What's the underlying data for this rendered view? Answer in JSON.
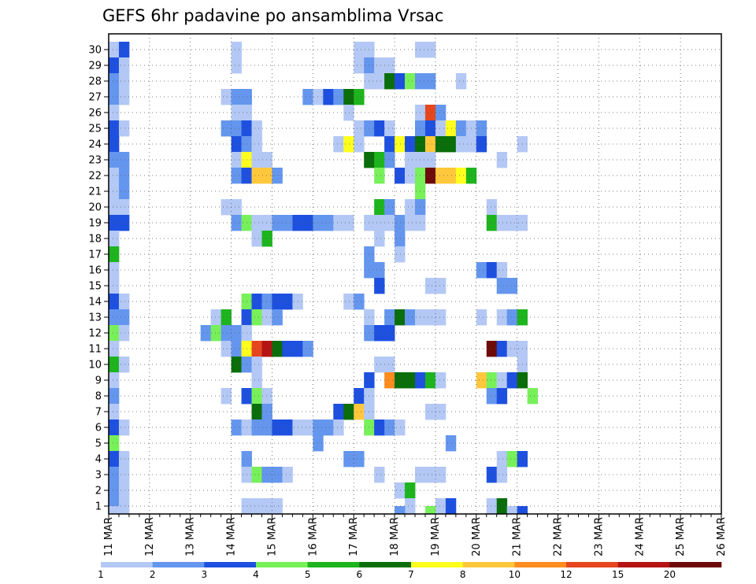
{
  "chart_data": {
    "type": "heatmap",
    "title": "GEFS 6hr padavine po ansamblima Vrsac",
    "x_labels": [
      "11 MAR",
      "12 MAR",
      "13 MAR",
      "14 MAR",
      "15 MAR",
      "16 MAR",
      "17 MAR",
      "18 MAR",
      "19 MAR",
      "20 MAR",
      "21 MAR",
      "22 MAR",
      "23 MAR",
      "24 MAR",
      "25 MAR",
      "26 MAR"
    ],
    "y_labels": [
      "1",
      "2",
      "3",
      "4",
      "5",
      "6",
      "7",
      "8",
      "9",
      "10",
      "11",
      "12",
      "13",
      "14",
      "15",
      "16",
      "17",
      "18",
      "19",
      "20",
      "21",
      "22",
      "23",
      "24",
      "25",
      "26",
      "27",
      "28",
      "29",
      "30"
    ],
    "steps_per_day": 4,
    "grid": true,
    "colorbar": {
      "labels": [
        "1",
        "2",
        "3",
        "4",
        "5",
        "6",
        "7",
        "8",
        "10",
        "12",
        "15",
        "20"
      ],
      "colors": [
        "#b4c8f5",
        "#6496ee",
        "#1e50e0",
        "#78f05a",
        "#1eb41e",
        "#0a6e0a",
        "#ffff1e",
        "#ffc83c",
        "#ff8c1e",
        "#e6461e",
        "#b41414",
        "#6e0a0a"
      ]
    },
    "cells": [
      [
        30,
        0,
        1
      ],
      [
        30,
        1,
        3
      ],
      [
        30,
        12,
        1
      ],
      [
        30,
        24,
        1
      ],
      [
        30,
        25,
        1
      ],
      [
        30,
        30,
        1
      ],
      [
        30,
        31,
        1
      ],
      [
        29,
        0,
        3
      ],
      [
        29,
        1,
        1
      ],
      [
        29,
        12,
        1
      ],
      [
        29,
        24,
        1
      ],
      [
        29,
        25,
        2
      ],
      [
        29,
        26,
        1
      ],
      [
        29,
        27,
        1
      ],
      [
        28,
        0,
        2
      ],
      [
        28,
        1,
        1
      ],
      [
        28,
        25,
        1
      ],
      [
        28,
        26,
        1
      ],
      [
        28,
        27,
        6
      ],
      [
        28,
        28,
        3
      ],
      [
        28,
        29,
        4
      ],
      [
        28,
        30,
        2
      ],
      [
        28,
        31,
        2
      ],
      [
        28,
        34,
        1
      ],
      [
        27,
        0,
        2
      ],
      [
        27,
        1,
        1
      ],
      [
        27,
        11,
        1
      ],
      [
        27,
        12,
        2
      ],
      [
        27,
        13,
        2
      ],
      [
        27,
        19,
        2
      ],
      [
        27,
        20,
        1
      ],
      [
        27,
        21,
        3
      ],
      [
        27,
        22,
        2
      ],
      [
        27,
        23,
        6
      ],
      [
        27,
        24,
        5
      ],
      [
        26,
        0,
        1
      ],
      [
        26,
        12,
        1
      ],
      [
        26,
        13,
        1
      ],
      [
        26,
        23,
        1
      ],
      [
        26,
        30,
        1
      ],
      [
        26,
        31,
        10
      ],
      [
        26,
        32,
        2
      ],
      [
        25,
        0,
        3
      ],
      [
        25,
        1,
        1
      ],
      [
        25,
        11,
        2
      ],
      [
        25,
        12,
        2
      ],
      [
        25,
        13,
        3
      ],
      [
        25,
        14,
        1
      ],
      [
        25,
        24,
        1
      ],
      [
        25,
        25,
        2
      ],
      [
        25,
        26,
        3
      ],
      [
        25,
        27,
        1
      ],
      [
        25,
        30,
        2
      ],
      [
        25,
        31,
        3
      ],
      [
        25,
        32,
        1
      ],
      [
        25,
        33,
        7
      ],
      [
        25,
        34,
        2
      ],
      [
        25,
        35,
        1
      ],
      [
        25,
        36,
        2
      ],
      [
        24,
        0,
        3
      ],
      [
        24,
        12,
        3
      ],
      [
        24,
        13,
        2
      ],
      [
        24,
        14,
        1
      ],
      [
        24,
        22,
        1
      ],
      [
        24,
        23,
        7
      ],
      [
        24,
        24,
        1
      ],
      [
        24,
        27,
        3
      ],
      [
        24,
        28,
        7
      ],
      [
        24,
        29,
        3
      ],
      [
        24,
        30,
        6
      ],
      [
        24,
        31,
        8
      ],
      [
        24,
        32,
        6
      ],
      [
        24,
        33,
        6
      ],
      [
        24,
        34,
        1
      ],
      [
        24,
        35,
        1
      ],
      [
        24,
        36,
        3
      ],
      [
        24,
        40,
        1
      ],
      [
        23,
        0,
        2
      ],
      [
        23,
        1,
        2
      ],
      [
        23,
        12,
        1
      ],
      [
        23,
        13,
        7
      ],
      [
        23,
        14,
        1
      ],
      [
        23,
        15,
        1
      ],
      [
        23,
        25,
        6
      ],
      [
        23,
        26,
        5
      ],
      [
        23,
        27,
        2
      ],
      [
        23,
        29,
        1
      ],
      [
        23,
        30,
        1
      ],
      [
        23,
        31,
        1
      ],
      [
        23,
        38,
        1
      ],
      [
        22,
        0,
        1
      ],
      [
        22,
        1,
        2
      ],
      [
        22,
        12,
        2
      ],
      [
        22,
        13,
        3
      ],
      [
        22,
        14,
        8
      ],
      [
        22,
        15,
        8
      ],
      [
        22,
        16,
        2
      ],
      [
        22,
        26,
        4
      ],
      [
        22,
        28,
        3
      ],
      [
        22,
        29,
        1
      ],
      [
        22,
        30,
        4
      ],
      [
        22,
        31,
        12
      ],
      [
        22,
        32,
        8
      ],
      [
        22,
        33,
        8
      ],
      [
        22,
        34,
        7
      ],
      [
        22,
        35,
        5
      ],
      [
        21,
        0,
        1
      ],
      [
        21,
        1,
        2
      ],
      [
        21,
        30,
        4
      ],
      [
        20,
        0,
        1
      ],
      [
        20,
        1,
        1
      ],
      [
        20,
        11,
        1
      ],
      [
        20,
        12,
        1
      ],
      [
        20,
        26,
        5
      ],
      [
        20,
        27,
        2
      ],
      [
        20,
        29,
        1
      ],
      [
        20,
        30,
        2
      ],
      [
        20,
        37,
        1
      ],
      [
        19,
        0,
        3
      ],
      [
        19,
        1,
        3
      ],
      [
        19,
        12,
        2
      ],
      [
        19,
        13,
        4
      ],
      [
        19,
        14,
        1
      ],
      [
        19,
        15,
        1
      ],
      [
        19,
        16,
        2
      ],
      [
        19,
        17,
        2
      ],
      [
        19,
        18,
        3
      ],
      [
        19,
        19,
        3
      ],
      [
        19,
        20,
        2
      ],
      [
        19,
        21,
        2
      ],
      [
        19,
        22,
        1
      ],
      [
        19,
        23,
        1
      ],
      [
        19,
        25,
        1
      ],
      [
        19,
        26,
        1
      ],
      [
        19,
        27,
        1
      ],
      [
        19,
        28,
        2
      ],
      [
        19,
        29,
        1
      ],
      [
        19,
        30,
        1
      ],
      [
        19,
        37,
        5
      ],
      [
        19,
        38,
        1
      ],
      [
        19,
        39,
        1
      ],
      [
        19,
        40,
        1
      ],
      [
        18,
        0,
        1
      ],
      [
        18,
        14,
        1
      ],
      [
        18,
        15,
        5
      ],
      [
        18,
        26,
        1
      ],
      [
        18,
        28,
        2
      ],
      [
        17,
        0,
        5
      ],
      [
        17,
        25,
        2
      ],
      [
        17,
        28,
        1
      ],
      [
        16,
        0,
        1
      ],
      [
        16,
        25,
        2
      ],
      [
        16,
        26,
        2
      ],
      [
        16,
        36,
        2
      ],
      [
        16,
        37,
        3
      ],
      [
        16,
        38,
        1
      ],
      [
        15,
        0,
        1
      ],
      [
        15,
        26,
        3
      ],
      [
        15,
        31,
        1
      ],
      [
        15,
        32,
        1
      ],
      [
        15,
        38,
        2
      ],
      [
        15,
        39,
        2
      ],
      [
        14,
        0,
        3
      ],
      [
        14,
        1,
        1
      ],
      [
        14,
        13,
        4
      ],
      [
        14,
        14,
        3
      ],
      [
        14,
        15,
        2
      ],
      [
        14,
        16,
        3
      ],
      [
        14,
        17,
        3
      ],
      [
        14,
        18,
        1
      ],
      [
        14,
        23,
        1
      ],
      [
        14,
        24,
        2
      ],
      [
        13,
        0,
        2
      ],
      [
        13,
        1,
        2
      ],
      [
        13,
        10,
        1
      ],
      [
        13,
        11,
        5
      ],
      [
        13,
        13,
        3
      ],
      [
        13,
        14,
        4
      ],
      [
        13,
        15,
        1
      ],
      [
        13,
        16,
        2
      ],
      [
        13,
        25,
        1
      ],
      [
        13,
        27,
        2
      ],
      [
        13,
        28,
        6
      ],
      [
        13,
        29,
        2
      ],
      [
        13,
        30,
        1
      ],
      [
        13,
        31,
        1
      ],
      [
        13,
        32,
        1
      ],
      [
        13,
        36,
        1
      ],
      [
        13,
        38,
        1
      ],
      [
        13,
        39,
        2
      ],
      [
        13,
        40,
        5
      ],
      [
        12,
        0,
        4
      ],
      [
        12,
        1,
        1
      ],
      [
        12,
        9,
        2
      ],
      [
        12,
        10,
        4
      ],
      [
        12,
        11,
        2
      ],
      [
        12,
        12,
        2
      ],
      [
        12,
        13,
        1
      ],
      [
        12,
        25,
        2
      ],
      [
        12,
        26,
        3
      ],
      [
        12,
        27,
        3
      ],
      [
        11,
        0,
        1
      ],
      [
        11,
        11,
        1
      ],
      [
        11,
        12,
        2
      ],
      [
        11,
        13,
        7
      ],
      [
        11,
        14,
        10
      ],
      [
        11,
        15,
        11
      ],
      [
        11,
        16,
        6
      ],
      [
        11,
        17,
        3
      ],
      [
        11,
        18,
        3
      ],
      [
        11,
        19,
        2
      ],
      [
        11,
        37,
        12
      ],
      [
        11,
        38,
        3
      ],
      [
        11,
        39,
        1
      ],
      [
        11,
        40,
        1
      ],
      [
        10,
        0,
        5
      ],
      [
        10,
        1,
        1
      ],
      [
        10,
        12,
        6
      ],
      [
        10,
        13,
        2
      ],
      [
        10,
        14,
        1
      ],
      [
        10,
        26,
        1
      ],
      [
        10,
        27,
        1
      ],
      [
        10,
        40,
        1
      ],
      [
        9,
        0,
        1
      ],
      [
        9,
        14,
        1
      ],
      [
        9,
        25,
        3
      ],
      [
        9,
        27,
        9
      ],
      [
        9,
        28,
        6
      ],
      [
        9,
        29,
        6
      ],
      [
        9,
        30,
        3
      ],
      [
        9,
        31,
        5
      ],
      [
        9,
        32,
        1
      ],
      [
        9,
        36,
        8
      ],
      [
        9,
        37,
        4
      ],
      [
        9,
        38,
        1
      ],
      [
        9,
        39,
        3
      ],
      [
        9,
        40,
        6
      ],
      [
        8,
        0,
        2
      ],
      [
        8,
        11,
        1
      ],
      [
        8,
        13,
        3
      ],
      [
        8,
        14,
        4
      ],
      [
        8,
        15,
        1
      ],
      [
        8,
        24,
        3
      ],
      [
        8,
        25,
        1
      ],
      [
        8,
        37,
        2
      ],
      [
        8,
        38,
        3
      ],
      [
        8,
        41,
        4
      ],
      [
        7,
        0,
        1
      ],
      [
        7,
        14,
        6
      ],
      [
        7,
        15,
        2
      ],
      [
        7,
        22,
        3
      ],
      [
        7,
        23,
        6
      ],
      [
        7,
        24,
        8
      ],
      [
        7,
        25,
        1
      ],
      [
        7,
        31,
        1
      ],
      [
        7,
        32,
        1
      ],
      [
        6,
        0,
        3
      ],
      [
        6,
        1,
        1
      ],
      [
        6,
        12,
        2
      ],
      [
        6,
        13,
        1
      ],
      [
        6,
        14,
        2
      ],
      [
        6,
        15,
        2
      ],
      [
        6,
        16,
        3
      ],
      [
        6,
        17,
        3
      ],
      [
        6,
        18,
        1
      ],
      [
        6,
        19,
        1
      ],
      [
        6,
        20,
        2
      ],
      [
        6,
        21,
        2
      ],
      [
        6,
        22,
        1
      ],
      [
        6,
        25,
        4
      ],
      [
        6,
        26,
        3
      ],
      [
        6,
        27,
        2
      ],
      [
        6,
        28,
        1
      ],
      [
        5,
        0,
        4
      ],
      [
        5,
        20,
        2
      ],
      [
        5,
        33,
        2
      ],
      [
        4,
        0,
        3
      ],
      [
        4,
        1,
        1
      ],
      [
        4,
        13,
        2
      ],
      [
        4,
        23,
        2
      ],
      [
        4,
        24,
        2
      ],
      [
        4,
        38,
        1
      ],
      [
        4,
        39,
        4
      ],
      [
        4,
        40,
        3
      ],
      [
        3,
        0,
        2
      ],
      [
        3,
        1,
        1
      ],
      [
        3,
        13,
        1
      ],
      [
        3,
        14,
        4
      ],
      [
        3,
        15,
        2
      ],
      [
        3,
        16,
        2
      ],
      [
        3,
        17,
        1
      ],
      [
        3,
        26,
        1
      ],
      [
        3,
        30,
        1
      ],
      [
        3,
        31,
        1
      ],
      [
        3,
        32,
        1
      ],
      [
        3,
        37,
        3
      ],
      [
        3,
        38,
        1
      ],
      [
        2,
        0,
        2
      ],
      [
        2,
        1,
        1
      ],
      [
        2,
        28,
        1
      ],
      [
        2,
        29,
        5
      ],
      [
        1,
        0,
        2
      ],
      [
        1,
        1,
        1
      ],
      [
        1,
        13,
        1
      ],
      [
        1,
        14,
        1
      ],
      [
        1,
        15,
        1
      ],
      [
        1,
        16,
        1
      ],
      [
        1,
        29,
        1
      ],
      [
        1,
        32,
        1
      ],
      [
        1,
        33,
        3
      ],
      [
        1,
        37,
        1
      ],
      [
        1,
        38,
        6
      ],
      [
        0,
        0,
        1
      ],
      [
        0,
        28,
        2
      ],
      [
        0,
        31,
        4
      ],
      [
        0,
        39,
        1
      ],
      [
        0,
        40,
        3
      ]
    ]
  }
}
